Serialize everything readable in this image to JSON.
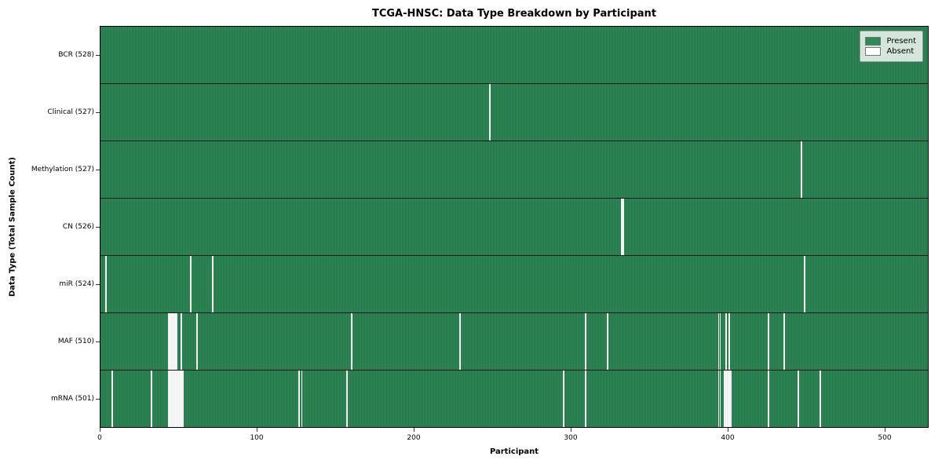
{
  "title": "TCGA-HNSC: Data Type Breakdown by Participant",
  "xlabel": "Participant",
  "ylabel": "Data Type (Total Sample Count)",
  "legend": {
    "present_label": "Present",
    "absent_label": "Absent"
  },
  "colors": {
    "present": "#2e8b57",
    "present_edge": "#1f5f3c",
    "absent": "#ffffff",
    "row_divider": "#151515"
  },
  "x_ticks": [
    0,
    100,
    200,
    300,
    400,
    500
  ],
  "chart_data": {
    "type": "heatmap",
    "subtype": "presence-absence matrix",
    "xlabel": "Participant",
    "ylabel": "Data Type (Total Sample Count)",
    "x_range": [
      0,
      528
    ],
    "n_participants": 528,
    "legend_entries": [
      "Present",
      "Absent"
    ],
    "legend_position": "upper right",
    "rows": [
      {
        "label": "BCR (528)",
        "name": "BCR",
        "total": 528,
        "absent": []
      },
      {
        "label": "Clinical (527)",
        "name": "Clinical",
        "total": 527,
        "absent": [
          248
        ]
      },
      {
        "label": "Methylation (527)",
        "name": "Methylation",
        "total": 527,
        "absent": [
          447
        ]
      },
      {
        "label": "CN (526)",
        "name": "CN",
        "total": 526,
        "absent": [
          332,
          333
        ]
      },
      {
        "label": "miR (524)",
        "name": "miR",
        "total": 524,
        "absent": [
          3,
          57,
          71,
          449
        ]
      },
      {
        "label": "MAF (510)",
        "name": "MAF",
        "total": 510,
        "absent": [
          43,
          44,
          45,
          46,
          47,
          48,
          51,
          61,
          160,
          229,
          309,
          323,
          394,
          395,
          399,
          401,
          426,
          436
        ]
      },
      {
        "label": "mRNA (501)",
        "name": "mRNA",
        "total": 501,
        "absent": [
          7,
          32,
          43,
          44,
          45,
          46,
          47,
          48,
          49,
          50,
          51,
          52,
          126,
          128,
          157,
          295,
          309,
          394,
          395,
          398,
          399,
          400,
          401,
          402,
          426,
          445,
          459
        ]
      }
    ]
  }
}
